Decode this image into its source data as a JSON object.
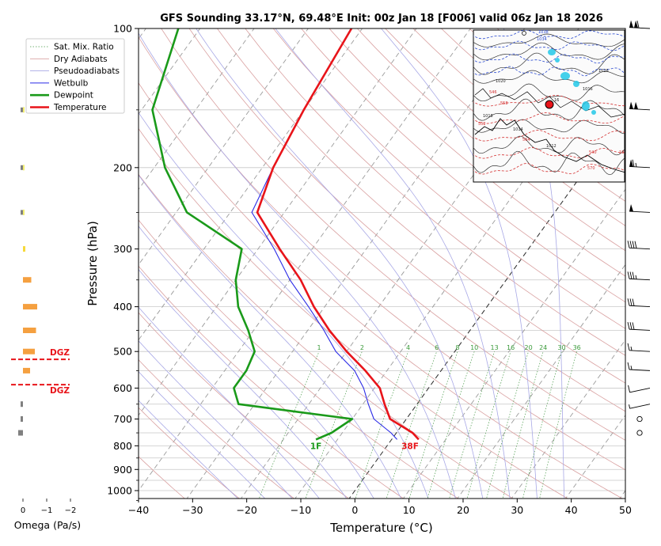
{
  "title": "GFS Sounding 33.17°N, 69.48°E Init: 00z Jan 18 [F006] valid 06z Jan 18 2026",
  "chart_data": {
    "type": "line",
    "chart_kind": "skew-T log-p sounding",
    "xlabel": "Temperature (°C)",
    "ylabel": "Pressure (hPa)",
    "xlim": [
      -40,
      50
    ],
    "ylim": [
      1050,
      100
    ],
    "y_scale": "log",
    "x_ticks": [
      -40,
      -30,
      -20,
      -10,
      0,
      10,
      20,
      30,
      40,
      50
    ],
    "y_ticks": [
      100,
      200,
      300,
      400,
      500,
      600,
      700,
      800,
      900,
      1000
    ],
    "grid": true,
    "legend_position": "top-left",
    "legend": [
      "Sat. Mix. Ratio",
      "Dry Adiabats",
      "Pseudoadiabats",
      "Wetbulb",
      "Dewpoint",
      "Temperature"
    ],
    "series": [
      {
        "name": "Temperature",
        "color": "#e8141a",
        "points": [
          [
            100,
            -62
          ],
          [
            150,
            -60
          ],
          [
            200,
            -58
          ],
          [
            250,
            -55
          ],
          [
            300,
            -46
          ],
          [
            350,
            -38
          ],
          [
            400,
            -32
          ],
          [
            450,
            -26
          ],
          [
            500,
            -20
          ],
          [
            550,
            -14
          ],
          [
            600,
            -9
          ],
          [
            650,
            -6
          ],
          [
            700,
            -3
          ],
          [
            750,
            3
          ],
          [
            775,
            5
          ]
        ]
      },
      {
        "name": "Dewpoint",
        "color": "#1a9a1a",
        "points": [
          [
            100,
            -94
          ],
          [
            150,
            -88
          ],
          [
            200,
            -78
          ],
          [
            250,
            -68
          ],
          [
            300,
            -53
          ],
          [
            350,
            -50
          ],
          [
            400,
            -46
          ],
          [
            450,
            -41
          ],
          [
            500,
            -37
          ],
          [
            550,
            -36
          ],
          [
            600,
            -36
          ],
          [
            650,
            -33
          ],
          [
            700,
            -10
          ],
          [
            750,
            -12
          ],
          [
            775,
            -14
          ]
        ]
      },
      {
        "name": "Wetbulb",
        "color": "#2a2ae6",
        "points": [
          [
            100,
            -62
          ],
          [
            150,
            -60
          ],
          [
            200,
            -58
          ],
          [
            250,
            -56
          ],
          [
            300,
            -47
          ],
          [
            350,
            -40
          ],
          [
            400,
            -33
          ],
          [
            450,
            -27
          ],
          [
            500,
            -22
          ],
          [
            550,
            -16
          ],
          [
            600,
            -12
          ],
          [
            650,
            -9
          ],
          [
            700,
            -6
          ],
          [
            750,
            -1
          ],
          [
            775,
            1
          ]
        ]
      }
    ],
    "mixing_ratio_labels": [
      "1",
      "2",
      "4",
      "6",
      "8",
      "10",
      "13",
      "16",
      "20",
      "24",
      "30",
      "36"
    ],
    "surface_labels": {
      "temperature": "38F",
      "dewpoint": "1F"
    },
    "dgz_label": "DGZ",
    "dgz_layer_hpa": [
      520,
      590
    ],
    "omega": {
      "xlabel": "Omega (Pa/s)",
      "x_ticks": [
        "0",
        "−1",
        "−2"
      ],
      "levels_hpa": [
        150,
        200,
        250,
        300,
        350,
        400,
        450,
        500,
        550,
        650,
        700,
        750
      ],
      "values": [
        -0.05,
        -0.02,
        -0.05,
        -0.1,
        -0.35,
        -0.6,
        -0.55,
        -0.5,
        -0.3,
        0.1,
        0.1,
        0.2
      ]
    },
    "winds": {
      "levels_hpa": [
        100,
        150,
        200,
        250,
        300,
        350,
        400,
        450,
        500,
        550,
        600,
        650,
        700,
        750
      ],
      "speed_kt": [
        110,
        100,
        65,
        50,
        40,
        35,
        30,
        30,
        15,
        15,
        10,
        5,
        0,
        0
      ],
      "note": "plotted as wind barbs, rightmost levels are calm circles"
    }
  },
  "inset_map": {
    "contour_labels": [
      "1038",
      "1034",
      "1026",
      "1020",
      "1018",
      "1016",
      "1014",
      "1012",
      "101",
      "558",
      "564",
      "570",
      "552",
      "546",
      "540",
      "16"
    ]
  }
}
